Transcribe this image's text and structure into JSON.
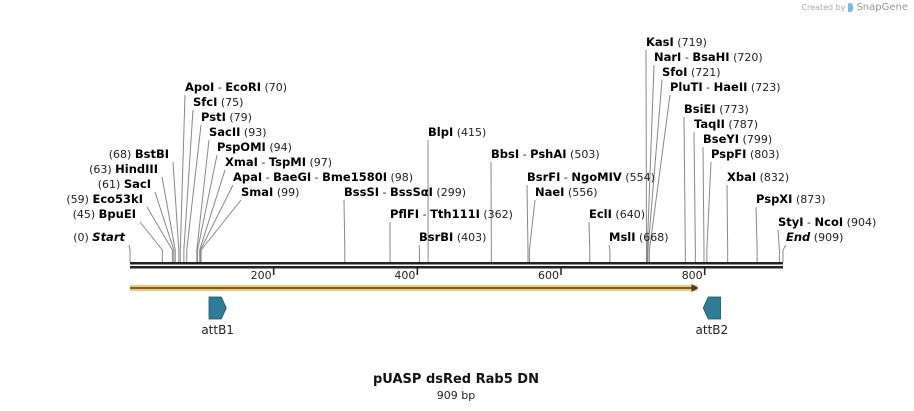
{
  "credit": {
    "prefix": "Created by",
    "brand": "SnapGene",
    "icon": "snapgene-logo-icon"
  },
  "title": "pUASP dsRed Rab5 DN",
  "size_label": "909 bp",
  "sequence_length": 909,
  "ticks": [
    {
      "pos": 200,
      "label": "200"
    },
    {
      "pos": 400,
      "label": "400"
    },
    {
      "pos": 600,
      "label": "600"
    },
    {
      "pos": 800,
      "label": "800"
    }
  ],
  "colors": {
    "backbone": "#222222",
    "orf_fill": "#f7c873",
    "orf_line": "#4a3a1a",
    "attb": "#2e7d96",
    "leader": "#888888"
  },
  "features": [
    {
      "name": "attB1",
      "start": 110,
      "end": 134,
      "direction": "forward"
    },
    {
      "name": "attB2",
      "start": 798,
      "end": 822,
      "direction": "reverse"
    }
  ],
  "orf": {
    "start": 0,
    "end": 790,
    "direction": "forward"
  },
  "sites": [
    {
      "names": [
        "Start"
      ],
      "pos": "0",
      "site": 0,
      "italic": true
    },
    {
      "names": [
        "BpuEI"
      ],
      "pos": "45",
      "site": 45
    },
    {
      "names": [
        "Eco53kI"
      ],
      "pos": "59",
      "site": 59
    },
    {
      "names": [
        "SacI"
      ],
      "pos": "61",
      "site": 61
    },
    {
      "names": [
        "HindIII"
      ],
      "pos": "63",
      "site": 63
    },
    {
      "names": [
        "BstBI"
      ],
      "pos": "68",
      "site": 68
    },
    {
      "names": [
        "ApoI",
        "EcoRI"
      ],
      "pos": "70",
      "site": 70
    },
    {
      "names": [
        "SfcI"
      ],
      "pos": "75",
      "site": 75
    },
    {
      "names": [
        "PstI"
      ],
      "pos": "79",
      "site": 79
    },
    {
      "names": [
        "SacII"
      ],
      "pos": "93",
      "site": 93
    },
    {
      "names": [
        "PspOMI"
      ],
      "pos": "94",
      "site": 94
    },
    {
      "names": [
        "XmaI",
        "TspMI"
      ],
      "pos": "97",
      "site": 97
    },
    {
      "names": [
        "ApaI",
        "BaeGI",
        "Bme1580I"
      ],
      "pos": "98",
      "site": 98
    },
    {
      "names": [
        "SmaI"
      ],
      "pos": "99",
      "site": 99
    },
    {
      "names": [
        "BssSI",
        "BssSαI"
      ],
      "pos": "299",
      "site": 299
    },
    {
      "names": [
        "PflFI",
        "Tth111I"
      ],
      "pos": "362",
      "site": 362
    },
    {
      "names": [
        "BsrBI"
      ],
      "pos": "403",
      "site": 403
    },
    {
      "names": [
        "BlpI"
      ],
      "pos": "415",
      "site": 415
    },
    {
      "names": [
        "BbsI",
        "PshAI"
      ],
      "pos": "503",
      "site": 503
    },
    {
      "names": [
        "BsrFI",
        "NgoMIV"
      ],
      "pos": "554",
      "site": 554
    },
    {
      "names": [
        "NaeI"
      ],
      "pos": "556",
      "site": 556
    },
    {
      "names": [
        "EclI"
      ],
      "pos": "640",
      "site": 640
    },
    {
      "names": [
        "MslI"
      ],
      "pos": "668",
      "site": 668
    },
    {
      "names": [
        "KasI"
      ],
      "pos": "719",
      "site": 719
    },
    {
      "names": [
        "NarI",
        "BsaHI"
      ],
      "pos": "720",
      "site": 720
    },
    {
      "names": [
        "SfoI"
      ],
      "pos": "721",
      "site": 721
    },
    {
      "names": [
        "PluTI",
        "HaeII"
      ],
      "pos": "723",
      "site": 723
    },
    {
      "names": [
        "BsiEI"
      ],
      "pos": "773",
      "site": 773
    },
    {
      "names": [
        "TaqII"
      ],
      "pos": "787",
      "site": 787
    },
    {
      "names": [
        "BseYI"
      ],
      "pos": "799",
      "site": 799
    },
    {
      "names": [
        "PspFI"
      ],
      "pos": "803",
      "site": 803
    },
    {
      "names": [
        "XbaI"
      ],
      "pos": "832",
      "site": 832
    },
    {
      "names": [
        "PspXI"
      ],
      "pos": "873",
      "site": 873
    },
    {
      "names": [
        "StyI",
        "NcoI"
      ],
      "pos": "904",
      "site": 904
    },
    {
      "names": [
        "End"
      ],
      "pos": "909",
      "site": 909,
      "italic": true
    }
  ]
}
